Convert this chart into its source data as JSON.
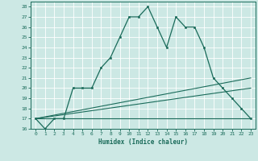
{
  "xlabel": "Humidex (Indice chaleur)",
  "ylabel": "",
  "bg_color": "#cce8e4",
  "grid_color": "#ffffff",
  "line_color": "#1a6b5a",
  "xlim": [
    -0.5,
    23.5
  ],
  "ylim": [
    16,
    28.5
  ],
  "yticks": [
    16,
    17,
    18,
    19,
    20,
    21,
    22,
    23,
    24,
    25,
    26,
    27,
    28
  ],
  "xticks": [
    0,
    1,
    2,
    3,
    4,
    5,
    6,
    7,
    8,
    9,
    10,
    11,
    12,
    13,
    14,
    15,
    16,
    17,
    18,
    19,
    20,
    21,
    22,
    23
  ],
  "main_x": [
    0,
    1,
    2,
    3,
    4,
    5,
    6,
    7,
    8,
    9,
    10,
    11,
    12,
    13,
    14,
    15,
    16,
    17,
    18,
    19,
    20,
    21,
    22,
    23
  ],
  "main_y": [
    17,
    16,
    17,
    17,
    20,
    20,
    20,
    22,
    23,
    25,
    27,
    27,
    28,
    26,
    24,
    27,
    26,
    26,
    24,
    21,
    20,
    19,
    18,
    17
  ],
  "line1_x": [
    0,
    23
  ],
  "line1_y": [
    17,
    17
  ],
  "line2_x": [
    0,
    23
  ],
  "line2_y": [
    17,
    21
  ],
  "line3_x": [
    0,
    23
  ],
  "line3_y": [
    17,
    20
  ]
}
